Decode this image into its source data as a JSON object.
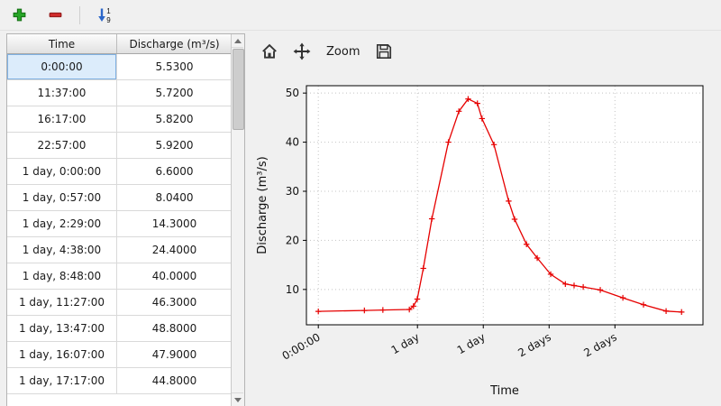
{
  "window": {
    "bg": "#f0f0f0"
  },
  "main_toolbar": {
    "add_button": {
      "icon": "plus-icon",
      "color": "#27a527"
    },
    "remove_button": {
      "icon": "minus-icon",
      "color": "#cf2b2b"
    },
    "sort_button": {
      "icon": "sort-numeric-ascending-icon",
      "top_digit": "1",
      "bottom_digit": "9",
      "arrow_color": "#2b66c9"
    }
  },
  "table": {
    "columns": [
      "Time",
      "Discharge (m³/s)"
    ],
    "selected_row_index": 0,
    "rows": [
      [
        "0:00:00",
        "5.5300"
      ],
      [
        "11:37:00",
        "5.7200"
      ],
      [
        "16:17:00",
        "5.8200"
      ],
      [
        "22:57:00",
        "5.9200"
      ],
      [
        "1 day, 0:00:00",
        "6.6000"
      ],
      [
        "1 day, 0:57:00",
        "8.0400"
      ],
      [
        "1 day, 2:29:00",
        "14.3000"
      ],
      [
        "1 day, 4:38:00",
        "24.4000"
      ],
      [
        "1 day, 8:48:00",
        "40.0000"
      ],
      [
        "1 day, 11:27:00",
        "46.3000"
      ],
      [
        "1 day, 13:47:00",
        "48.8000"
      ],
      [
        "1 day, 16:07:00",
        "47.9000"
      ],
      [
        "1 day, 17:17:00",
        "44.8000"
      ]
    ]
  },
  "chart_toolbar": {
    "home_button": "home-icon",
    "pan_button": "move-icon",
    "zoom_button_label": "Zoom",
    "save_button": "save-icon"
  },
  "chart_data": {
    "type": "line",
    "title": "",
    "xlabel": "Time",
    "ylabel": "Discharge (m³/s)",
    "line_color": "#e60000",
    "marker": "plus",
    "grid": true,
    "x_unit": "hours",
    "xlim": [
      -3,
      97
    ],
    "ylim": [
      2.8,
      51.5
    ],
    "yticks": [
      10,
      20,
      30,
      40,
      50
    ],
    "xticks": [
      {
        "pos": 0,
        "label": "0:00:00"
      },
      {
        "pos": 25,
        "label": "1 day"
      },
      {
        "pos": 41.6,
        "label": "1 day"
      },
      {
        "pos": 58.2,
        "label": "2 days"
      },
      {
        "pos": 74.8,
        "label": "2 days"
      }
    ],
    "series": [
      {
        "name": "Discharge",
        "x": [
          0,
          11.62,
          16.28,
          22.95,
          24.0,
          24.95,
          26.48,
          28.63,
          32.8,
          35.45,
          37.78,
          40.12,
          41.28,
          44.3,
          48.0,
          49.5,
          52.5,
          55.2,
          58.6,
          62.3,
          64.5,
          66.8,
          71.1,
          76.8,
          82.0,
          87.7,
          91.6
        ],
        "y": [
          5.53,
          5.72,
          5.82,
          5.92,
          6.6,
          8.04,
          14.3,
          24.4,
          40.0,
          46.3,
          48.8,
          47.9,
          44.8,
          39.5,
          28.0,
          24.3,
          19.2,
          16.4,
          13.1,
          11.1,
          10.8,
          10.5,
          9.9,
          8.3,
          6.9,
          5.6,
          5.4
        ]
      }
    ]
  }
}
